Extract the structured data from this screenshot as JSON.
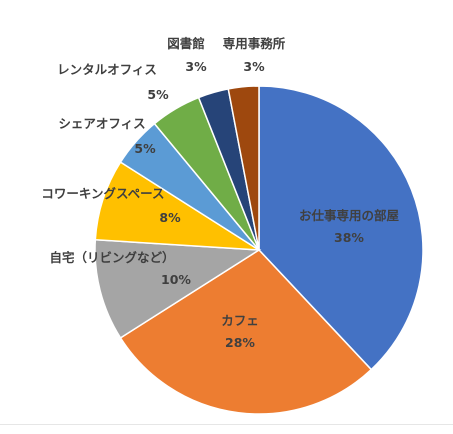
{
  "chart_data": {
    "type": "pie",
    "title": "",
    "start_angle_deg": 0,
    "direction": "clockwise",
    "legend": "none",
    "slices": [
      {
        "label": "お仕事専用の部屋",
        "value": 38,
        "value_label": "38%",
        "color": "#4472c4"
      },
      {
        "label": "カフェ",
        "value": 28,
        "value_label": "28%",
        "color": "#ed7d31"
      },
      {
        "label": "自宅（リビングなど）",
        "value": 10,
        "value_label": "10%",
        "color": "#a5a5a5"
      },
      {
        "label": "コワーキングスペース",
        "value": 8,
        "value_label": "8%",
        "color": "#ffc000"
      },
      {
        "label": "シェアオフィス",
        "value": 5,
        "value_label": "5%",
        "color": "#5b9bd5"
      },
      {
        "label": "レンタルオフィス",
        "value": 5,
        "value_label": "5%",
        "color": "#70ad47"
      },
      {
        "label": "図書館",
        "value": 3,
        "value_label": "3%",
        "color": "#264478"
      },
      {
        "label": "専用事務所",
        "value": 3,
        "value_label": "3%",
        "color": "#9e480e"
      }
    ]
  }
}
